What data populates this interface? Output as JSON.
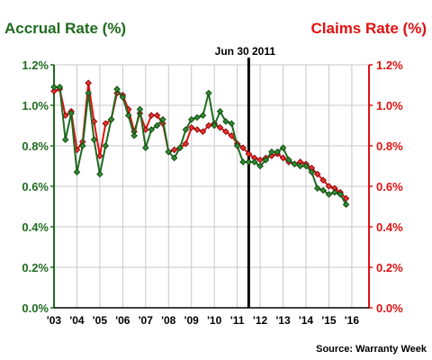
{
  "chart_data": {
    "type": "line",
    "title_left": "Accrual Rate (%)",
    "title_right": "Claims Rate (%)",
    "annotation": "Jun 30 2011",
    "annotation_x": 2011.5,
    "source": "Source: Warranty Week",
    "x_ticks": [
      "'03",
      "'04",
      "'05",
      "'06",
      "'07",
      "'08",
      "'09",
      "'10",
      "'11",
      "'12",
      "'13",
      "'14",
      "'15",
      "'16"
    ],
    "y_ticks": [
      "0.0%",
      "0.2%",
      "0.4%",
      "0.6%",
      "0.8%",
      "1.0%",
      "1.2%"
    ],
    "ylim": [
      0,
      1.2
    ],
    "xlim": [
      2003,
      2016.75
    ],
    "grid": true,
    "colors": {
      "accrual": "#1f6b1f",
      "claims": "#e01010",
      "marker_accrual": "#2e8b2e",
      "marker_claims": "#e83030"
    },
    "series": [
      {
        "name": "Accrual Rate (%)",
        "axis": "left",
        "values": [
          [
            2003.0,
            1.09
          ],
          [
            2003.25,
            1.09
          ],
          [
            2003.5,
            0.83
          ],
          [
            2003.75,
            0.96
          ],
          [
            2004.0,
            0.67
          ],
          [
            2004.25,
            0.8
          ],
          [
            2004.5,
            1.06
          ],
          [
            2004.75,
            0.83
          ],
          [
            2005.0,
            0.66
          ],
          [
            2005.25,
            0.8
          ],
          [
            2005.5,
            0.93
          ],
          [
            2005.75,
            1.08
          ],
          [
            2006.0,
            1.04
          ],
          [
            2006.25,
            0.95
          ],
          [
            2006.5,
            0.85
          ],
          [
            2006.75,
            0.98
          ],
          [
            2007.0,
            0.79
          ],
          [
            2007.25,
            0.88
          ],
          [
            2007.5,
            0.9
          ],
          [
            2007.75,
            0.93
          ],
          [
            2008.0,
            0.77
          ],
          [
            2008.25,
            0.74
          ],
          [
            2008.5,
            0.79
          ],
          [
            2008.75,
            0.88
          ],
          [
            2009.0,
            0.93
          ],
          [
            2009.25,
            0.94
          ],
          [
            2009.5,
            0.95
          ],
          [
            2009.75,
            1.06
          ],
          [
            2010.0,
            0.9
          ],
          [
            2010.25,
            0.97
          ],
          [
            2010.5,
            0.92
          ],
          [
            2010.75,
            0.91
          ],
          [
            2011.0,
            0.8
          ],
          [
            2011.25,
            0.72
          ],
          [
            2011.5,
            0.72
          ],
          [
            2011.75,
            0.72
          ],
          [
            2012.0,
            0.7
          ],
          [
            2012.25,
            0.73
          ],
          [
            2012.5,
            0.77
          ],
          [
            2012.75,
            0.77
          ],
          [
            2013.0,
            0.79
          ],
          [
            2013.25,
            0.73
          ],
          [
            2013.5,
            0.71
          ],
          [
            2013.75,
            0.7
          ],
          [
            2014.0,
            0.7
          ],
          [
            2014.25,
            0.67
          ],
          [
            2014.5,
            0.59
          ],
          [
            2014.75,
            0.58
          ],
          [
            2015.0,
            0.56
          ],
          [
            2015.25,
            0.57
          ],
          [
            2015.5,
            0.56
          ],
          [
            2015.75,
            0.51
          ]
        ]
      },
      {
        "name": "Claims Rate (%)",
        "axis": "right",
        "values": [
          [
            2003.0,
            1.07
          ],
          [
            2003.25,
            1.08
          ],
          [
            2003.5,
            0.95
          ],
          [
            2003.75,
            0.97
          ],
          [
            2004.0,
            0.78
          ],
          [
            2004.25,
            0.82
          ],
          [
            2004.5,
            1.11
          ],
          [
            2004.75,
            0.92
          ],
          [
            2005.0,
            0.75
          ],
          [
            2005.25,
            0.91
          ],
          [
            2005.5,
            0.93
          ],
          [
            2005.75,
            1.06
          ],
          [
            2006.0,
            1.05
          ],
          [
            2006.25,
            0.98
          ],
          [
            2006.5,
            0.87
          ],
          [
            2006.75,
            0.96
          ],
          [
            2007.0,
            0.88
          ],
          [
            2007.25,
            0.95
          ],
          [
            2007.5,
            0.95
          ],
          [
            2007.75,
            0.91
          ],
          [
            2008.0,
            0.77
          ],
          [
            2008.25,
            0.78
          ],
          [
            2008.5,
            0.79
          ],
          [
            2008.75,
            0.81
          ],
          [
            2009.0,
            0.89
          ],
          [
            2009.25,
            0.88
          ],
          [
            2009.5,
            0.87
          ],
          [
            2009.75,
            0.9
          ],
          [
            2010.0,
            0.91
          ],
          [
            2010.25,
            0.89
          ],
          [
            2010.5,
            0.87
          ],
          [
            2010.75,
            0.85
          ],
          [
            2011.0,
            0.81
          ],
          [
            2011.25,
            0.79
          ],
          [
            2011.5,
            0.76
          ],
          [
            2011.75,
            0.74
          ],
          [
            2012.0,
            0.73
          ],
          [
            2012.25,
            0.74
          ],
          [
            2012.5,
            0.75
          ],
          [
            2012.75,
            0.76
          ],
          [
            2013.0,
            0.74
          ],
          [
            2013.25,
            0.72
          ],
          [
            2013.5,
            0.71
          ],
          [
            2013.75,
            0.72
          ],
          [
            2014.0,
            0.71
          ],
          [
            2014.25,
            0.69
          ],
          [
            2014.5,
            0.66
          ],
          [
            2014.75,
            0.63
          ],
          [
            2015.0,
            0.6
          ],
          [
            2015.25,
            0.59
          ],
          [
            2015.5,
            0.57
          ],
          [
            2015.75,
            0.54
          ]
        ]
      }
    ]
  }
}
